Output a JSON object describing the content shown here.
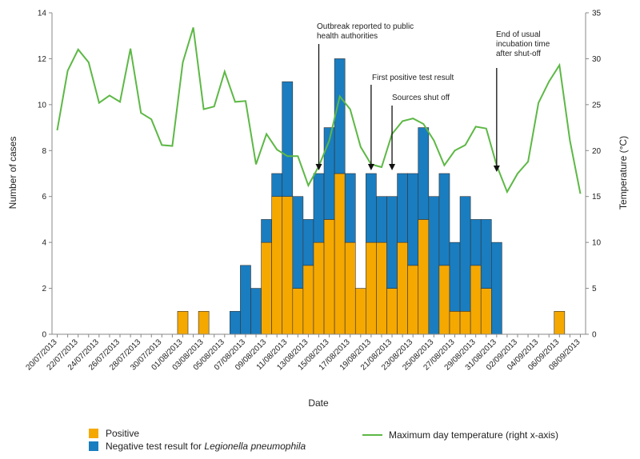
{
  "chart_data": {
    "type": "bar",
    "stacked": true,
    "xlabel": "Date",
    "ylabel": "Number of cases",
    "y2label": "Temperature (°C)",
    "ylim": [
      0,
      14
    ],
    "y2lim": [
      0,
      35
    ],
    "yticks": [
      0,
      2,
      4,
      6,
      8,
      10,
      12,
      14
    ],
    "y2ticks": [
      0,
      5,
      10,
      15,
      20,
      25,
      30,
      35
    ],
    "grid": false,
    "legend_position": "bottom",
    "colors": {
      "positive": "#F5A800",
      "negative": "#1A7DC0",
      "temperature": "#5DB845"
    },
    "dates": [
      "20/07/2013",
      "21/07/2013",
      "22/07/2013",
      "23/07/2013",
      "24/07/2013",
      "25/07/2013",
      "26/07/2013",
      "27/07/2013",
      "28/07/2013",
      "29/07/2013",
      "30/07/2013",
      "31/07/2013",
      "01/08/2013",
      "02/08/2013",
      "03/08/2013",
      "04/08/2013",
      "05/08/2013",
      "06/08/2013",
      "07/08/2013",
      "08/08/2013",
      "09/08/2013",
      "10/08/2013",
      "11/08/2013",
      "12/08/2013",
      "13/08/2013",
      "14/08/2013",
      "15/08/2013",
      "16/08/2013",
      "17/08/2013",
      "18/08/2013",
      "19/08/2013",
      "20/08/2013",
      "21/08/2013",
      "22/08/2013",
      "23/08/2013",
      "24/08/2013",
      "25/08/2013",
      "26/08/2013",
      "27/08/2013",
      "28/08/2013",
      "29/08/2013",
      "30/08/2013",
      "31/08/2013",
      "01/09/2013",
      "02/09/2013",
      "03/09/2013",
      "04/09/2013",
      "05/09/2013",
      "06/09/2013",
      "07/09/2013",
      "08/09/2013"
    ],
    "x_tick_labels": [
      "20/07/2013",
      "22/07/2013",
      "24/07/2013",
      "26/07/2013",
      "28/07/2013",
      "30/07/2013",
      "01/08/2013",
      "03/08/2013",
      "05/08/2013",
      "07/08/2013",
      "09/08/2013",
      "11/08/2013",
      "13/08/2013",
      "15/08/2013",
      "17/08/2013",
      "19/08/2013",
      "21/08/2013",
      "23/08/2013",
      "25/08/2013",
      "27/08/2013",
      "29/08/2013",
      "31/08/2013",
      "02/09/2013",
      "04/09/2013",
      "06/09/2013",
      "08/09/2013"
    ],
    "series": [
      {
        "name": "Positive",
        "key": "positive",
        "values": [
          0,
          0,
          0,
          0,
          0,
          0,
          0,
          0,
          0,
          0,
          0,
          0,
          1,
          0,
          1,
          0,
          0,
          0,
          0,
          0,
          4,
          6,
          6,
          2,
          3,
          4,
          5,
          7,
          4,
          2,
          4,
          4,
          2,
          4,
          3,
          5,
          0,
          3,
          1,
          1,
          3,
          2,
          0,
          0,
          0,
          0,
          0,
          0,
          1,
          0,
          0
        ]
      },
      {
        "name": "Negative test result for Legionella pneumophila",
        "key": "negative",
        "values": [
          0,
          0,
          0,
          0,
          0,
          0,
          0,
          0,
          0,
          0,
          0,
          0,
          0,
          0,
          0,
          0,
          0,
          1,
          3,
          2,
          1,
          1,
          5,
          4,
          2,
          3,
          4,
          5,
          3,
          0,
          3,
          2,
          4,
          3,
          4,
          4,
          6,
          4,
          3,
          5,
          2,
          3,
          4,
          0,
          0,
          0,
          0,
          0,
          0,
          0,
          0
        ]
      }
    ],
    "line": {
      "name": "Maximum day temperature (right x-axis)",
      "values": [
        22.2,
        28.7,
        31,
        29.6,
        25.2,
        26,
        25.3,
        31.1,
        24.1,
        23.4,
        20.6,
        20.5,
        29.6,
        33.4,
        24.5,
        24.8,
        28.6,
        25.3,
        25.4,
        18.5,
        21.8,
        20.1,
        19.4,
        19.4,
        16.2,
        18.3,
        21.1,
        25.9,
        24.5,
        20.4,
        18.5,
        18.2,
        21.8,
        23.2,
        23.5,
        22.9,
        21.1,
        18.4,
        20,
        20.6,
        22.6,
        22.4,
        18.4,
        15.5,
        17.5,
        18.8,
        25.2,
        27.5,
        29.3,
        21.1,
        15.3
      ]
    },
    "annotations": [
      {
        "lines": [
          "Outbreak reported to public",
          "health authorities"
        ],
        "date": "14/08/2013"
      },
      {
        "lines": [
          "First positive test result"
        ],
        "date": "19/08/2013"
      },
      {
        "lines": [
          "Sources shut off"
        ],
        "date": "21/08/2013"
      },
      {
        "lines": [
          "End of usual",
          "incubation time",
          "after shut-off"
        ],
        "date": "31/08/2013"
      }
    ],
    "legend": {
      "positive": "Positive",
      "negative_prefix": "Negative test result for ",
      "negative_italic": "Legionella pneumophila",
      "temperature": "Maximum day temperature (right x-axis)"
    }
  }
}
